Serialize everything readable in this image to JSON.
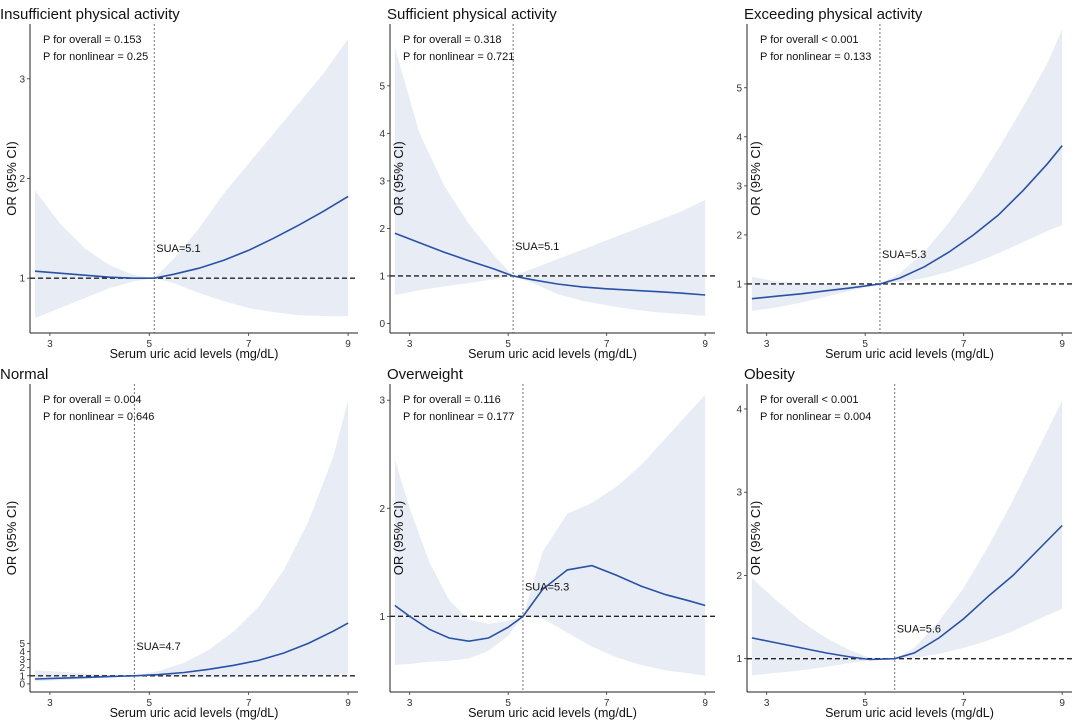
{
  "chart_data": [
    {
      "type": "line",
      "title": "Insufficient physical activity",
      "annotations": [
        "P for overall = 0.153",
        "P for nonlinear = 0.25"
      ],
      "xlabel": "Serum uric acid levels (mg/dL)",
      "ylabel": "OR (95% CI)",
      "xlim": [
        2.6,
        9.2
      ],
      "ylim": [
        0.45,
        3.55
      ],
      "xticks": [
        3,
        5,
        7,
        9
      ],
      "yticks": [
        1,
        2,
        3
      ],
      "reference_y": 1,
      "cutoff": {
        "x": 5.1,
        "label": "SUA=5.1"
      },
      "series": [
        {
          "x": [
            2.7,
            3.2,
            3.7,
            4.2,
            4.7,
            5.1,
            5.5,
            6.0,
            6.5,
            7.0,
            7.5,
            8.0,
            8.5,
            9.0
          ],
          "or": [
            1.07,
            1.05,
            1.03,
            1.01,
            1.0,
            1.0,
            1.04,
            1.1,
            1.18,
            1.28,
            1.4,
            1.53,
            1.67,
            1.82
          ],
          "lower": [
            0.6,
            0.7,
            0.8,
            0.9,
            0.97,
            1.0,
            0.95,
            0.85,
            0.77,
            0.7,
            0.66,
            0.63,
            0.62,
            0.62
          ],
          "upper": [
            1.88,
            1.55,
            1.3,
            1.13,
            1.03,
            1.0,
            1.2,
            1.5,
            1.85,
            2.15,
            2.45,
            2.75,
            3.05,
            3.4
          ]
        }
      ]
    },
    {
      "type": "line",
      "title": "Sufficient physical activity",
      "annotations": [
        "P for overall = 0.318",
        "P for nonlinear = 0.721"
      ],
      "xlabel": "Serum uric acid levels (mg/dL)",
      "ylabel": "OR (95% CI)",
      "xlim": [
        2.6,
        9.2
      ],
      "ylim": [
        -0.2,
        6.3
      ],
      "xticks": [
        3,
        5,
        7,
        9
      ],
      "yticks": [
        0,
        1,
        2,
        3,
        4,
        5
      ],
      "reference_y": 1,
      "cutoff": {
        "x": 5.1,
        "label": "SUA=5.1"
      },
      "series": [
        {
          "x": [
            2.7,
            3.2,
            3.7,
            4.2,
            4.7,
            5.1,
            5.5,
            6.0,
            6.5,
            7.0,
            7.5,
            8.0,
            8.5,
            9.0
          ],
          "or": [
            1.9,
            1.7,
            1.5,
            1.32,
            1.15,
            1.0,
            0.92,
            0.83,
            0.77,
            0.73,
            0.7,
            0.67,
            0.64,
            0.6
          ],
          "lower": [
            0.6,
            0.7,
            0.78,
            0.85,
            0.93,
            1.0,
            0.85,
            0.62,
            0.48,
            0.38,
            0.3,
            0.24,
            0.2,
            0.16
          ],
          "upper": [
            5.8,
            4.0,
            2.9,
            2.1,
            1.45,
            1.0,
            1.15,
            1.35,
            1.55,
            1.75,
            1.95,
            2.15,
            2.35,
            2.6
          ]
        }
      ]
    },
    {
      "type": "line",
      "title": "Exceeding physical activity",
      "annotations": [
        "P for overall < 0.001",
        "P for nonlinear = 0.133"
      ],
      "xlabel": "Serum uric acid levels (mg/dL)",
      "ylabel": "OR (95% CI)",
      "xlim": [
        2.6,
        9.2
      ],
      "ylim": [
        0.0,
        6.3
      ],
      "xticks": [
        3,
        5,
        7,
        9
      ],
      "yticks": [
        1,
        2,
        3,
        4,
        5
      ],
      "reference_y": 1,
      "cutoff": {
        "x": 5.3,
        "label": "SUA=5.3"
      },
      "series": [
        {
          "x": [
            2.7,
            3.2,
            3.7,
            4.2,
            4.7,
            5.3,
            5.7,
            6.2,
            6.7,
            7.2,
            7.7,
            8.2,
            8.7,
            9.0
          ],
          "or": [
            0.7,
            0.75,
            0.8,
            0.86,
            0.92,
            1.0,
            1.12,
            1.35,
            1.65,
            2.0,
            2.4,
            2.9,
            3.45,
            3.82
          ],
          "lower": [
            0.45,
            0.52,
            0.62,
            0.74,
            0.86,
            1.0,
            1.04,
            1.12,
            1.25,
            1.42,
            1.62,
            1.85,
            2.08,
            2.2
          ],
          "upper": [
            1.15,
            1.05,
            1.02,
            1.0,
            0.99,
            1.0,
            1.22,
            1.65,
            2.25,
            2.95,
            3.75,
            4.6,
            5.5,
            6.2
          ]
        }
      ]
    },
    {
      "type": "line",
      "title": "Normal",
      "annotations": [
        "P for overall = 0.004",
        "P for nonlinear = 0.646"
      ],
      "xlabel": "Serum uric acid levels (mg/dL)",
      "ylabel": "OR (95% CI)",
      "xlim": [
        2.6,
        9.2
      ],
      "ylim": [
        -1.0,
        37.0
      ],
      "xticks": [
        3,
        5,
        7,
        9
      ],
      "yticks": [
        0,
        1,
        2,
        3,
        4,
        5
      ],
      "reference_y": 1,
      "cutoff": {
        "x": 4.7,
        "label": "SUA=4.7"
      },
      "series": [
        {
          "x": [
            2.7,
            3.2,
            3.7,
            4.2,
            4.7,
            5.2,
            5.7,
            6.2,
            6.7,
            7.2,
            7.7,
            8.2,
            8.7,
            9.0
          ],
          "or": [
            0.6,
            0.7,
            0.8,
            0.9,
            1.0,
            1.15,
            1.4,
            1.8,
            2.3,
            2.9,
            3.8,
            5.0,
            6.5,
            7.5
          ],
          "lower": [
            0.3,
            0.45,
            0.6,
            0.8,
            1.0,
            0.9,
            0.85,
            0.8,
            0.8,
            0.85,
            0.9,
            1.0,
            1.1,
            1.2
          ],
          "upper": [
            1.7,
            1.5,
            1.3,
            1.1,
            1.0,
            1.6,
            2.6,
            4.2,
            6.5,
            9.5,
            14.0,
            20.0,
            28.0,
            35.0
          ]
        }
      ]
    },
    {
      "type": "line",
      "title": "Overweight",
      "annotations": [
        "P for overall = 0.116",
        "P for nonlinear = 0.177"
      ],
      "xlabel": "Serum uric acid levels (mg/dL)",
      "ylabel": "OR (95% CI)",
      "xlim": [
        2.6,
        9.2
      ],
      "ylim": [
        0.3,
        3.15
      ],
      "xticks": [
        3,
        5,
        7,
        9
      ],
      "yticks": [
        1,
        2,
        3
      ],
      "reference_y": 1,
      "cutoff": {
        "x": 5.3,
        "label": "SUA=5.3"
      },
      "series": [
        {
          "x": [
            2.7,
            3.0,
            3.4,
            3.8,
            4.2,
            4.6,
            5.0,
            5.3,
            5.7,
            6.2,
            6.7,
            7.2,
            7.7,
            8.2,
            8.7,
            9.0
          ],
          "or": [
            1.1,
            1.0,
            0.88,
            0.8,
            0.77,
            0.8,
            0.9,
            1.0,
            1.25,
            1.43,
            1.47,
            1.38,
            1.28,
            1.2,
            1.14,
            1.1
          ],
          "lower": [
            0.55,
            0.56,
            0.58,
            0.59,
            0.61,
            0.68,
            0.82,
            1.0,
            0.98,
            0.85,
            0.72,
            0.62,
            0.55,
            0.5,
            0.47,
            0.45
          ],
          "upper": [
            2.45,
            2.0,
            1.5,
            1.15,
            0.97,
            0.93,
            0.96,
            1.0,
            1.6,
            1.95,
            2.05,
            2.2,
            2.4,
            2.65,
            2.9,
            3.05
          ]
        }
      ]
    },
    {
      "type": "line",
      "title": "Obesity",
      "annotations": [
        "P for overall < 0.001",
        "P for nonlinear = 0.004"
      ],
      "xlabel": "Serum uric acid levels (mg/dL)",
      "ylabel": "OR (95% CI)",
      "xlim": [
        2.6,
        9.2
      ],
      "ylim": [
        0.6,
        4.3
      ],
      "xticks": [
        3,
        5,
        7,
        9
      ],
      "yticks": [
        1,
        2,
        3,
        4
      ],
      "reference_y": 1,
      "cutoff": {
        "x": 5.6,
        "label": "SUA=5.6"
      },
      "series": [
        {
          "x": [
            2.7,
            3.2,
            3.7,
            4.2,
            4.7,
            5.1,
            5.6,
            6.0,
            6.5,
            7.0,
            7.5,
            8.0,
            8.5,
            9.0
          ],
          "or": [
            1.25,
            1.19,
            1.13,
            1.07,
            1.02,
            0.99,
            1.0,
            1.07,
            1.25,
            1.48,
            1.75,
            2.0,
            2.3,
            2.6
          ],
          "lower": [
            0.8,
            0.83,
            0.86,
            0.9,
            0.95,
            0.98,
            1.0,
            1.01,
            1.06,
            1.13,
            1.22,
            1.33,
            1.47,
            1.6
          ],
          "upper": [
            1.97,
            1.7,
            1.45,
            1.25,
            1.1,
            1.01,
            1.0,
            1.13,
            1.45,
            1.85,
            2.35,
            2.9,
            3.5,
            4.1
          ]
        }
      ]
    }
  ]
}
